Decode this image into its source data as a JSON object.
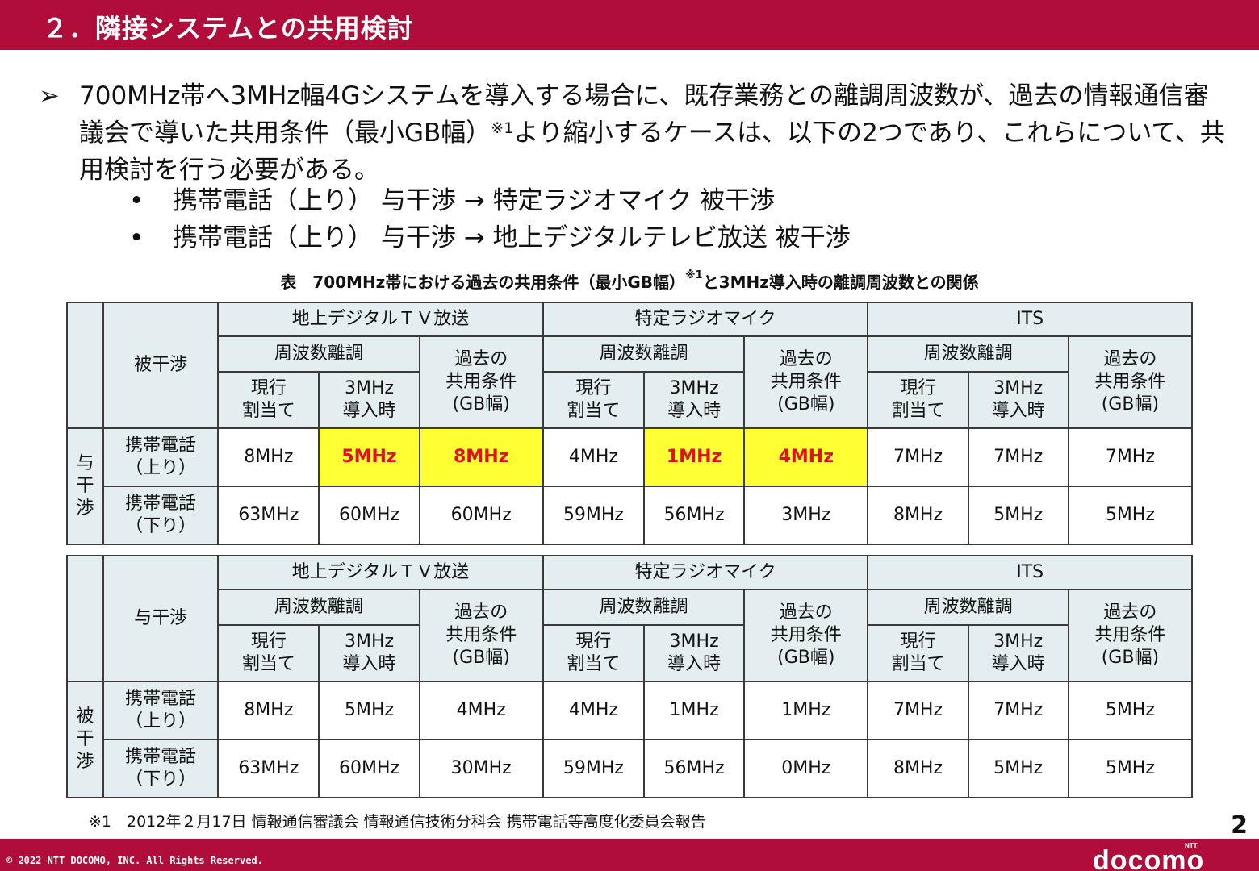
{
  "header": {
    "title": "２．隣接システムとの共用検討"
  },
  "intro": {
    "arrow": "➢",
    "text_main": "700MHz帯へ3MHz幅4Gシステムを導入する場合に、既存業務との離調周波数が、過去の情報通信審議会で導いた共用条件（最小GB幅）",
    "text_sup": "※1",
    "text_tail": "より縮小するケースは、以下の2つであり、これらについて、共用検討を行う必要がある。"
  },
  "bullets": [
    {
      "marker": "•",
      "text": "携帯電話（上り） 与干渉 → 特定ラジオマイク 被干渉"
    },
    {
      "marker": "•",
      "text": "携帯電話（上り） 与干渉 → 地上デジタルテレビ放送 被干渉"
    }
  ],
  "caption": {
    "main": "表　700MHz帯における過去の共用条件（最小GB幅）",
    "sup": "※1",
    "tail": "と3MHz導入時の離調周波数との関係"
  },
  "headers": {
    "tv": "地上デジタルＴＶ放送",
    "mic": "特定ラジオマイク",
    "its": "ITS",
    "freq_offset": "周波数離調",
    "past_line1": "過去の",
    "past_line2": "共用条件",
    "past_line3": "(GB幅)",
    "current_line1": "現行",
    "current_line2": "割当て",
    "new_line1": "3MHz",
    "new_line2": "導入時"
  },
  "table1": {
    "corner_label": "被干渉",
    "side_label": [
      "与",
      "干",
      "渉"
    ],
    "rows": [
      {
        "label_line1": "携帯電話",
        "label_line2": "（上り）",
        "values": [
          "8MHz",
          "5MHz",
          "8MHz",
          "4MHz",
          "1MHz",
          "4MHz",
          "7MHz",
          "7MHz",
          "7MHz"
        ]
      },
      {
        "label_line1": "携帯電話",
        "label_line2": "（下り）",
        "values": [
          "63MHz",
          "60MHz",
          "60MHz",
          "59MHz",
          "56MHz",
          "3MHz",
          "8MHz",
          "5MHz",
          "5MHz"
        ]
      }
    ]
  },
  "table2": {
    "corner_label": "与干渉",
    "side_label": [
      "被",
      "干",
      "渉"
    ],
    "rows": [
      {
        "label_line1": "携帯電話",
        "label_line2": "（上り）",
        "values": [
          "8MHz",
          "5MHz",
          "4MHz",
          "4MHz",
          "1MHz",
          "1MHz",
          "7MHz",
          "7MHz",
          "5MHz"
        ]
      },
      {
        "label_line1": "携帯電話",
        "label_line2": "（下り）",
        "values": [
          "63MHz",
          "60MHz",
          "30MHz",
          "59MHz",
          "56MHz",
          "0MHz",
          "8MHz",
          "5MHz",
          "5MHz"
        ]
      }
    ]
  },
  "colors": {
    "brand": "#b00d3a",
    "header_fill": "#e4eef0",
    "highlight_fill": "#ffff33",
    "highlight_text": "#e0101e"
  },
  "footnote": "※1　2012年２月17日 情報通信審議会 情報通信技術分科会 携帯電話等高度化委員会報告",
  "page_number": "2",
  "copyright": "© 2022 NTT DOCOMO, INC. All Rights Reserved.",
  "logo": {
    "small": "NTT",
    "main": "docomo"
  }
}
